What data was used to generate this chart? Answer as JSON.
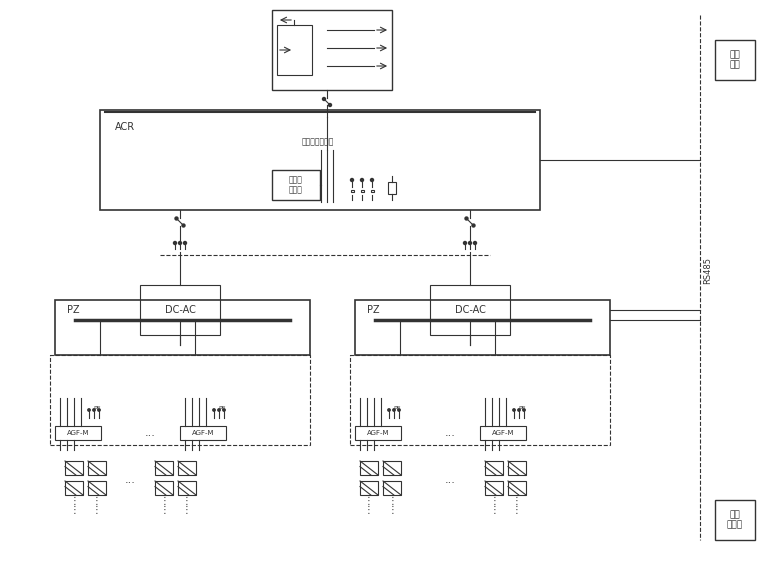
{
  "bg_color": "#ffffff",
  "line_color": "#333333",
  "figsize": [
    7.6,
    5.7
  ],
  "dpi": 100,
  "labels": {
    "acr": "ACR",
    "pz": "PZ",
    "dc_ac": "DC-AC",
    "agfm": "AGF-M",
    "monitor": "监控\n系统",
    "env": "环境\n监测仪",
    "rs485": "RS485",
    "grid_v": "网侧电压、电流",
    "fanbian": "防孤流\n控制器",
    "pe": "PE",
    "dots": "..."
  }
}
